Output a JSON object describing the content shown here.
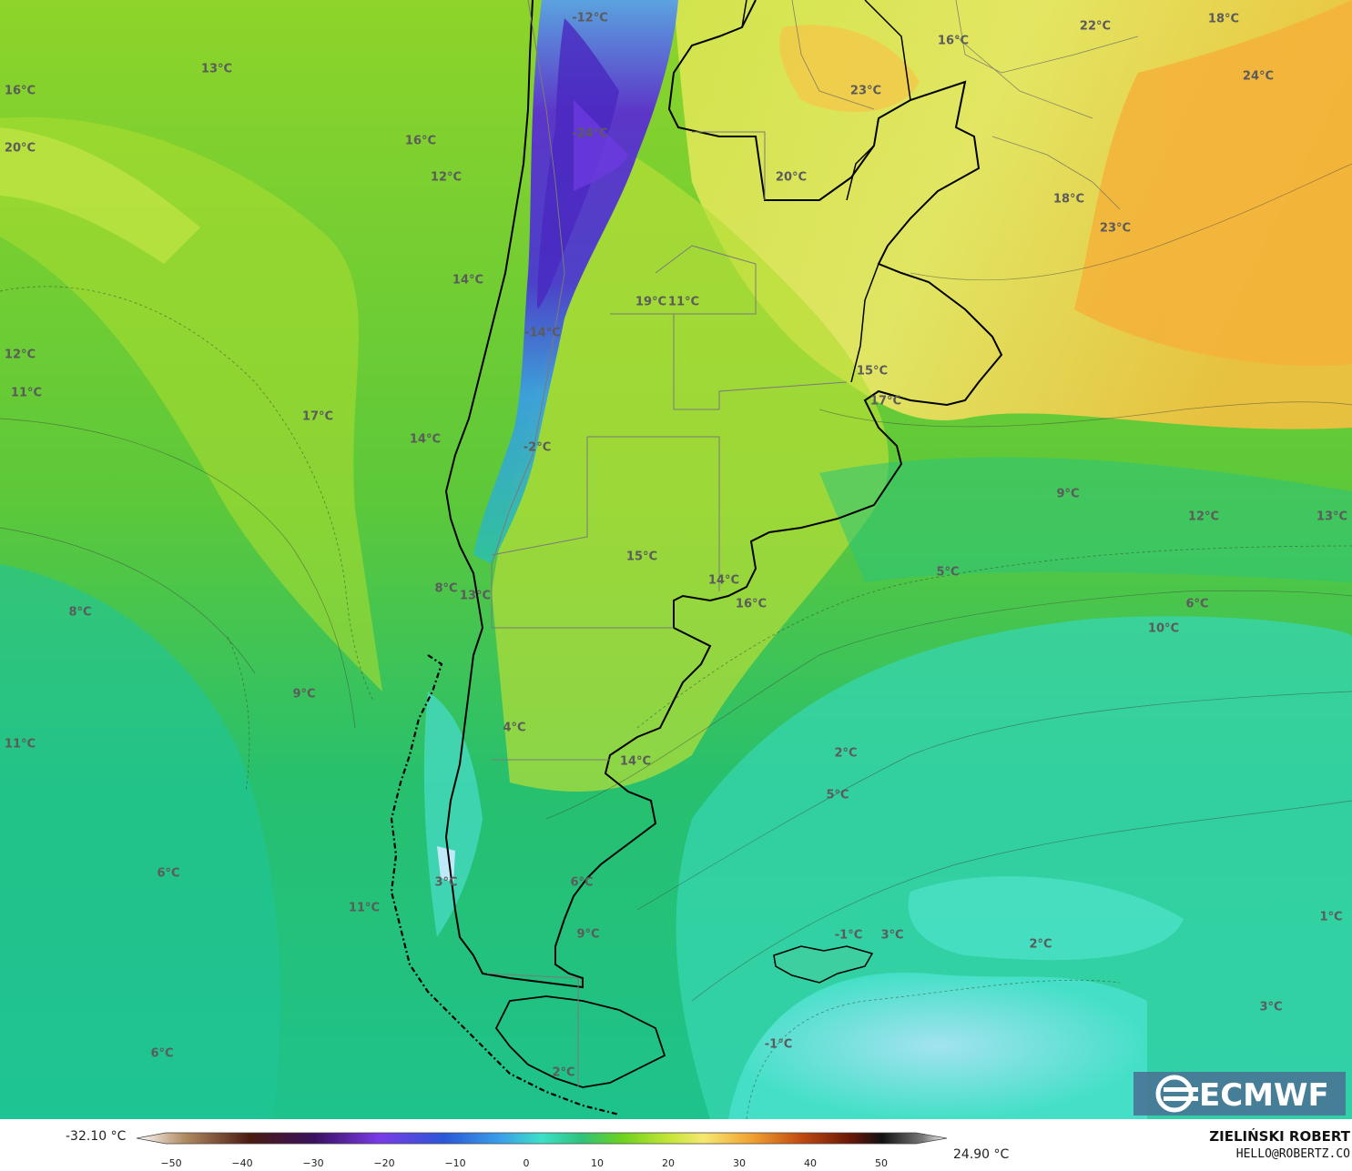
{
  "map": {
    "temperature_labels": [
      {
        "text": "-12°C"
      },
      {
        "text": "-24°C"
      },
      {
        "text": "-14°C"
      },
      {
        "text": "-2°C"
      },
      {
        "text": "13°C"
      },
      {
        "text": "16°C"
      },
      {
        "text": "20°C"
      },
      {
        "text": "16°C"
      },
      {
        "text": "12°C"
      },
      {
        "text": "14°C"
      },
      {
        "text": "12°C"
      },
      {
        "text": "11°C"
      },
      {
        "text": "17°C"
      },
      {
        "text": "14°C"
      },
      {
        "text": "19°C"
      },
      {
        "text": "11°C"
      },
      {
        "text": "20°C"
      },
      {
        "text": "23°C"
      },
      {
        "text": "16°C"
      },
      {
        "text": "22°C"
      },
      {
        "text": "18°C"
      },
      {
        "text": "24°C"
      },
      {
        "text": "18°C"
      },
      {
        "text": "23°C"
      },
      {
        "text": "15°C"
      },
      {
        "text": "17°C"
      },
      {
        "text": "9°C"
      },
      {
        "text": "12°C"
      },
      {
        "text": "13°C"
      },
      {
        "text": "15°C"
      },
      {
        "text": "14°C"
      },
      {
        "text": "16°C"
      },
      {
        "text": "8°C"
      },
      {
        "text": "13°C"
      },
      {
        "text": "8°C"
      },
      {
        "text": "5°C"
      },
      {
        "text": "6°C"
      },
      {
        "text": "10°C"
      },
      {
        "text": "9°C"
      },
      {
        "text": "11°C"
      },
      {
        "text": "4°C"
      },
      {
        "text": "14°C"
      },
      {
        "text": "2°C"
      },
      {
        "text": "5°C"
      },
      {
        "text": "6°C"
      },
      {
        "text": "3°C"
      },
      {
        "text": "6°C"
      },
      {
        "text": "11°C"
      },
      {
        "text": "9°C"
      },
      {
        "text": "-1°C"
      },
      {
        "text": "3°C"
      },
      {
        "text": "2°C"
      },
      {
        "text": "1°C"
      },
      {
        "text": "3°C"
      },
      {
        "text": "-1°C"
      },
      {
        "text": "6°C"
      },
      {
        "text": "2°C"
      }
    ],
    "logo_text": "ECMWF"
  },
  "legend": {
    "min_label": "-32.10 °C",
    "max_label": "24.90 °C",
    "ticks": [
      "−50",
      "−40",
      "−30",
      "−20",
      "−10",
      "0",
      "10",
      "20",
      "30",
      "40",
      "50"
    ],
    "colorscale": [
      "#ffffff",
      "#b08a60",
      "#4a1a10",
      "#3a1060",
      "#7a3be8",
      "#2a58d8",
      "#3aa0e8",
      "#3ce0c8",
      "#2ec27a",
      "#6ed21c",
      "#c8e63a",
      "#f6e870",
      "#f0a030",
      "#c04a10",
      "#6a1808",
      "#111111",
      "#777777",
      "#ffffff"
    ]
  },
  "credits": {
    "author": "ZIELIŃSKI ROBERT",
    "email": "HELLO@ROBERTZ.CO"
  }
}
